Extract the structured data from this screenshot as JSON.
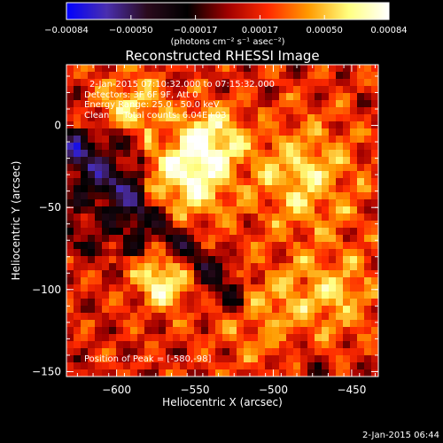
{
  "chart_data": {
    "type": "heatmap",
    "title": "Reconstructed RHESSI Image",
    "xlabel": "Heliocentric X (arcsec)",
    "ylabel": "Heliocentric Y (arcsec)",
    "xlim": [
      -632,
      -433
    ],
    "ylim": [
      -153,
      37
    ],
    "x_ticks": [
      {
        "value": -600,
        "label": "−600"
      },
      {
        "value": -550,
        "label": "−550"
      },
      {
        "value": -500,
        "label": "−500"
      },
      {
        "value": -450,
        "label": "−450"
      }
    ],
    "y_ticks": [
      {
        "value": 0,
        "label": "0"
      },
      {
        "value": -50,
        "label": "−50"
      },
      {
        "value": -100,
        "label": "−100"
      },
      {
        "value": -150,
        "label": "−150"
      }
    ],
    "annotations": [
      "2-Jan-2015 07:10:32.000 to 07:15:32.000",
      "Detectors: 3F 6F 9F, Att 0",
      "Energy Range: 25.0 - 50.0 keV",
      "Clean     Total counts: 6.04E+03"
    ],
    "peak_label": "Position of Peak = [-580,-98]",
    "colorbar": {
      "range": [
        -0.00084,
        0.00084
      ],
      "tick_labels": [
        "−0.00084",
        "−0.00050",
        "−0.00017",
        "0.00017",
        "0.00050",
        "0.00084"
      ],
      "units_text": "(photons cm⁻² s⁻¹ asec⁻²)",
      "colors": [
        "#0000ff",
        "#4a2fae",
        "#2a0a1c",
        "#000000",
        "#a00000",
        "#ff2a00",
        "#ff9a00",
        "#ffff80",
        "#ffffff"
      ]
    },
    "grid": false
  },
  "footer": {
    "date": "2-Jan-2015 06:44"
  }
}
